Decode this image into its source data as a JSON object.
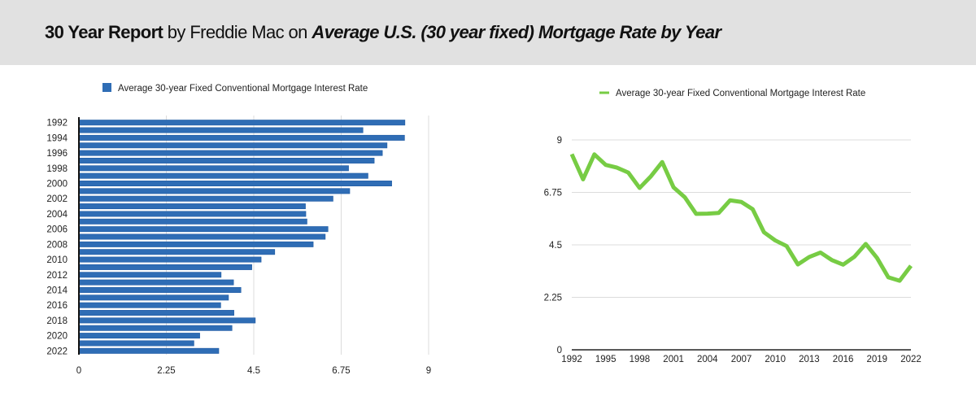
{
  "header": {
    "title_bold": "30 Year Report",
    "title_mid": " by Freddie Mac on ",
    "title_italic": "Average U.S. (30 year fixed) Mortgage Rate by Year",
    "background_color": "#e1e1e1"
  },
  "chart_data": [
    {
      "type": "bar",
      "orientation": "horizontal",
      "title": "",
      "legend": {
        "label": "Average 30-year Fixed Conventional Mortgage Interest Rate",
        "position": "top-center"
      },
      "color": "#2f6db5",
      "categories": [
        "1992",
        "1993",
        "1994",
        "1995",
        "1996",
        "1997",
        "1998",
        "1999",
        "2000",
        "2001",
        "2002",
        "2003",
        "2004",
        "2005",
        "2006",
        "2007",
        "2008",
        "2009",
        "2010",
        "2011",
        "2012",
        "2013",
        "2014",
        "2015",
        "2016",
        "2017",
        "2018",
        "2019",
        "2020",
        "2021",
        "2022"
      ],
      "category_tick_labels": [
        "1992",
        "1994",
        "1996",
        "1998",
        "2000",
        "2002",
        "2004",
        "2006",
        "2008",
        "2010",
        "2012",
        "2014",
        "2016",
        "2018",
        "2020",
        "2022"
      ],
      "values": [
        8.39,
        7.31,
        8.38,
        7.93,
        7.81,
        7.6,
        6.94,
        7.44,
        8.05,
        6.97,
        6.54,
        5.83,
        5.84,
        5.87,
        6.41,
        6.34,
        6.03,
        5.04,
        4.69,
        4.45,
        3.66,
        3.98,
        4.17,
        3.85,
        3.65,
        3.99,
        4.54,
        3.94,
        3.11,
        2.96,
        3.6
      ],
      "xlim": [
        0,
        9
      ],
      "x_ticks": [
        "0",
        "2.25",
        "4.5",
        "6.75",
        "9"
      ],
      "grid": true
    },
    {
      "type": "line",
      "title": "",
      "legend": {
        "label": "Average 30-year Fixed Conventional Mortgage Interest Rate",
        "position": "top-center"
      },
      "color": "#77cc44",
      "x": [
        1992,
        1993,
        1994,
        1995,
        1996,
        1997,
        1998,
        1999,
        2000,
        2001,
        2002,
        2003,
        2004,
        2005,
        2006,
        2007,
        2008,
        2009,
        2010,
        2011,
        2012,
        2013,
        2014,
        2015,
        2016,
        2017,
        2018,
        2019,
        2020,
        2021,
        2022
      ],
      "values": [
        8.39,
        7.31,
        8.38,
        7.93,
        7.81,
        7.6,
        6.94,
        7.44,
        8.05,
        6.97,
        6.54,
        5.83,
        5.84,
        5.87,
        6.41,
        6.34,
        6.03,
        5.04,
        4.69,
        4.45,
        3.66,
        3.98,
        4.17,
        3.85,
        3.65,
        3.99,
        4.54,
        3.94,
        3.11,
        2.96,
        3.6
      ],
      "x_ticks": [
        "1992",
        "1995",
        "1998",
        "2001",
        "2004",
        "2007",
        "2010",
        "2013",
        "2016",
        "2019",
        "2022"
      ],
      "y_ticks": [
        "0",
        "2.25",
        "4.5",
        "6.75",
        "9"
      ],
      "ylim": [
        0,
        9
      ],
      "grid": true
    }
  ]
}
